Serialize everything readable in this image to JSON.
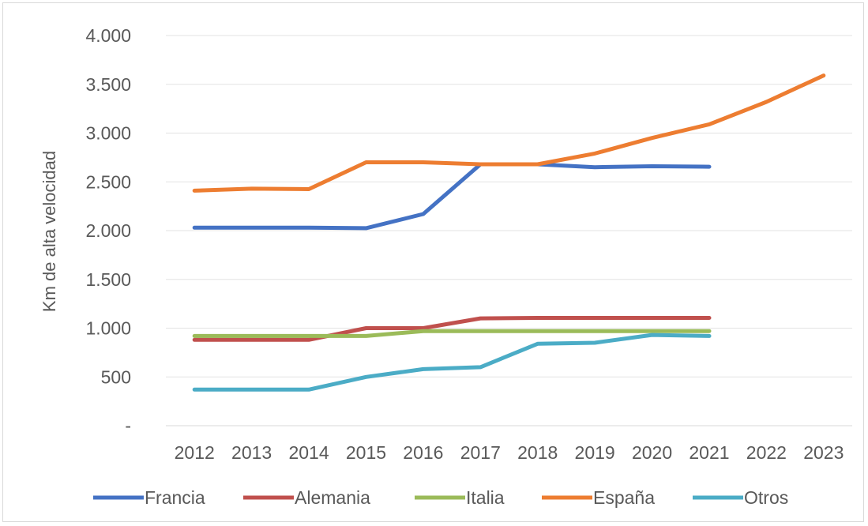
{
  "chart_data": {
    "type": "line",
    "title": "",
    "xlabel": "",
    "ylabel": "Km de alta velocidad",
    "categories": [
      "2012",
      "2013",
      "2014",
      "2015",
      "2016",
      "2017",
      "2018",
      "2019",
      "2020",
      "2021",
      "2022",
      "2023"
    ],
    "ylim": [
      0,
      4000
    ],
    "yticks": [
      {
        "value": 0,
        "label": "-"
      },
      {
        "value": 500,
        "label": "500"
      },
      {
        "value": 1000,
        "label": "1.000"
      },
      {
        "value": 1500,
        "label": "1.500"
      },
      {
        "value": 2000,
        "label": "2.000"
      },
      {
        "value": 2500,
        "label": "2.500"
      },
      {
        "value": 3000,
        "label": "3.000"
      },
      {
        "value": 3500,
        "label": "3.500"
      },
      {
        "value": 4000,
        "label": "4.000"
      }
    ],
    "grid": "horizontal",
    "legend_position": "bottom",
    "series": [
      {
        "name": "Francia",
        "color": "#4472c4",
        "values": [
          2030,
          2030,
          2030,
          2025,
          2170,
          2680,
          2680,
          2650,
          2660,
          2655,
          null,
          null
        ]
      },
      {
        "name": "Alemania",
        "color": "#c0504d",
        "values": [
          880,
          880,
          880,
          1000,
          1000,
          1100,
          1105,
          1105,
          1105,
          1105,
          null,
          null
        ]
      },
      {
        "name": "Italia",
        "color": "#9bbb59",
        "values": [
          920,
          920,
          920,
          920,
          970,
          970,
          970,
          970,
          970,
          970,
          null,
          null
        ]
      },
      {
        "name": "España",
        "color": "#ed7d31",
        "values": [
          2410,
          2430,
          2425,
          2700,
          2700,
          2680,
          2680,
          2790,
          2950,
          3090,
          3320,
          3590
        ]
      },
      {
        "name": "Otros",
        "color": "#4bacc6",
        "values": [
          370,
          370,
          370,
          500,
          580,
          600,
          840,
          850,
          930,
          920,
          null,
          null
        ]
      }
    ]
  }
}
